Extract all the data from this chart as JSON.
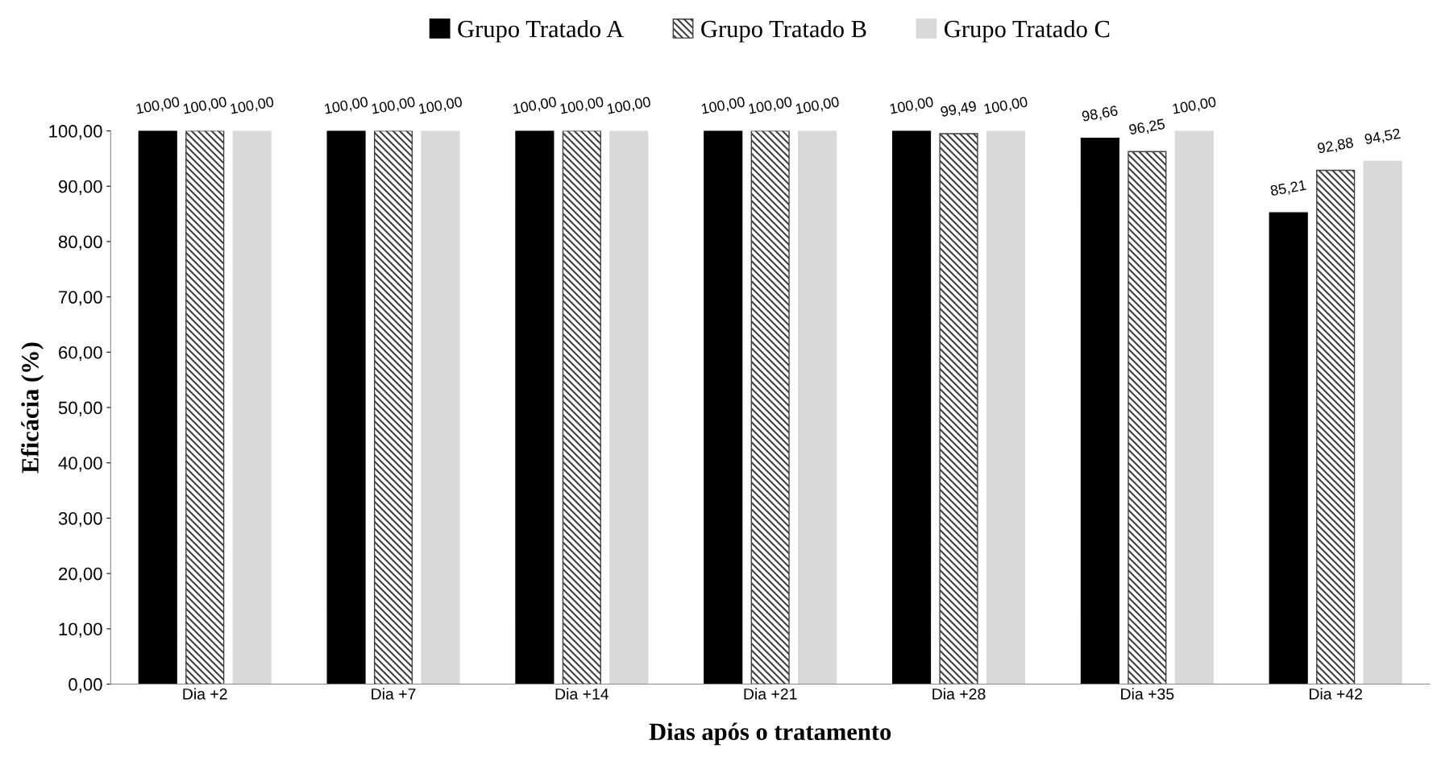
{
  "chart_data": {
    "type": "bar",
    "xlabel": "Dias após o tratamento",
    "ylabel": "Eficácia (%)",
    "categories": [
      "Dia +2",
      "Dia +7",
      "Dia +14",
      "Dia +21",
      "Dia +28",
      "Dia +35",
      "Dia +42"
    ],
    "series": [
      {
        "name": "Grupo Tratado A",
        "color": "#000000",
        "values": [
          100,
          100,
          100,
          100,
          100,
          98.66,
          85.21
        ],
        "value_labels": [
          "100,00",
          "100,00",
          "100,00",
          "100,00",
          "100,00",
          "98,66",
          "85,21"
        ]
      },
      {
        "name": "Grupo Tratado B",
        "color": "#404040",
        "values": [
          100,
          100,
          100,
          100,
          99.49,
          96.25,
          92.88
        ],
        "value_labels": [
          "100,00",
          "100,00",
          "100,00",
          "100,00",
          "99,49",
          "96,25",
          "92,88"
        ]
      },
      {
        "name": "Grupo Tratado C",
        "color": "#d9d9d9",
        "values": [
          100,
          100,
          100,
          100,
          100,
          100,
          94.52
        ],
        "value_labels": [
          "100,00",
          "100,00",
          "100,00",
          "100,00",
          "100,00",
          "100,00",
          "94,52"
        ]
      }
    ],
    "ylim": [
      0,
      100
    ],
    "yticks": [
      {
        "value": 0,
        "label": "0,00"
      },
      {
        "value": 10,
        "label": "10,00"
      },
      {
        "value": 20,
        "label": "20,00"
      },
      {
        "value": 30,
        "label": "30,00"
      },
      {
        "value": 40,
        "label": "40,00"
      },
      {
        "value": 50,
        "label": "50,00"
      },
      {
        "value": 60,
        "label": "60,00"
      },
      {
        "value": 70,
        "label": "70,00"
      },
      {
        "value": 80,
        "label": "80,00"
      },
      {
        "value": 90,
        "label": "90,00"
      },
      {
        "value": 100,
        "label": "100,00"
      }
    ],
    "legend": "top",
    "grid": false
  }
}
